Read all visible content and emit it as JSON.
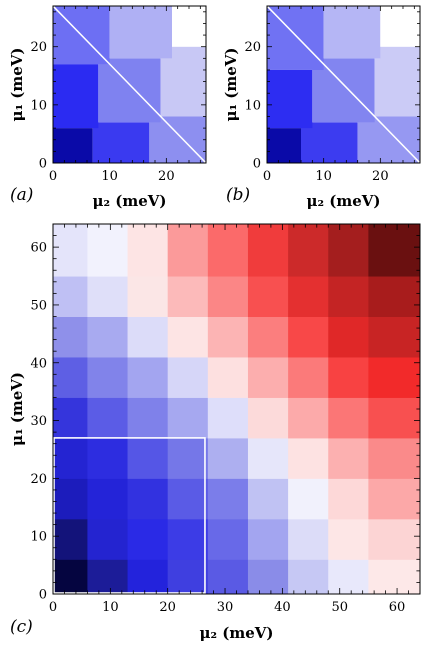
{
  "chart_data": [
    {
      "panel_label": "(a)",
      "type": "heatmap",
      "xlabel": "μ₂ (meV)",
      "ylabel": "μ₁ (meV)",
      "xlim": [
        0,
        27
      ],
      "ylim": [
        0,
        27
      ],
      "xticks": [
        "0",
        "10",
        "20"
      ],
      "yticks": [
        "0",
        "10",
        "20"
      ],
      "colormap": "blue-white",
      "diagonal_line": true,
      "regions": [
        {
          "x0": 0,
          "x1": 7,
          "y0": 0,
          "y1": 6,
          "color": "#0a0aa8"
        },
        {
          "x0": 7,
          "x1": 17,
          "y0": 0,
          "y1": 7,
          "color": "#3a3af0"
        },
        {
          "x0": 17,
          "x1": 27,
          "y0": 0,
          "y1": 8,
          "color": "#8d8ff0"
        },
        {
          "x0": 0,
          "x1": 8,
          "y0": 6,
          "y1": 17,
          "color": "#2b2bf2"
        },
        {
          "x0": 8,
          "x1": 19,
          "y0": 7,
          "y1": 18,
          "color": "#7f82f0"
        },
        {
          "x0": 19,
          "x1": 27,
          "y0": 8,
          "y1": 20,
          "color": "#c8c8f5"
        },
        {
          "x0": 0,
          "x1": 10,
          "y0": 17,
          "y1": 27,
          "color": "#6d6ff3"
        },
        {
          "x0": 10,
          "x1": 21,
          "y0": 18,
          "y1": 27,
          "color": "#afb0f4"
        },
        {
          "x0": 21,
          "x1": 27,
          "y0": 20,
          "y1": 27,
          "color": "#ffffff"
        }
      ]
    },
    {
      "panel_label": "(b)",
      "type": "heatmap",
      "xlabel": "μ₂ (meV)",
      "ylabel": "μ₁ (meV)",
      "xlim": [
        0,
        27
      ],
      "ylim": [
        0,
        27
      ],
      "xticks": [
        "0",
        "10",
        "20"
      ],
      "yticks": [
        "0",
        "10",
        "20"
      ],
      "colormap": "blue-white",
      "diagonal_line": true,
      "regions": [
        {
          "x0": 0,
          "x1": 6,
          "y0": 0,
          "y1": 6,
          "color": "#0a0aa8"
        },
        {
          "x0": 6,
          "x1": 16,
          "y0": 0,
          "y1": 7,
          "color": "#3c3cf0"
        },
        {
          "x0": 16,
          "x1": 27,
          "y0": 0,
          "y1": 8,
          "color": "#9698f2"
        },
        {
          "x0": 0,
          "x1": 8,
          "y0": 6,
          "y1": 16,
          "color": "#2d2df2"
        },
        {
          "x0": 8,
          "x1": 19,
          "y0": 7,
          "y1": 18,
          "color": "#8285f0"
        },
        {
          "x0": 19,
          "x1": 27,
          "y0": 8,
          "y1": 20,
          "color": "#cbcbf6"
        },
        {
          "x0": 0,
          "x1": 10,
          "y0": 16,
          "y1": 27,
          "color": "#7072f3"
        },
        {
          "x0": 10,
          "x1": 20,
          "y0": 18,
          "y1": 27,
          "color": "#b5b6f5"
        },
        {
          "x0": 20,
          "x1": 27,
          "y0": 20,
          "y1": 27,
          "color": "#ffffff"
        }
      ]
    },
    {
      "panel_label": "(c)",
      "type": "heatmap",
      "xlabel": "μ₂ (meV)",
      "ylabel": "μ₁ (meV)",
      "xlim": [
        0,
        64
      ],
      "ylim": [
        0,
        64
      ],
      "xticks": [
        "0",
        "10",
        "20",
        "30",
        "40",
        "50",
        "60"
      ],
      "yticks": [
        "0",
        "10",
        "20",
        "30",
        "40",
        "50",
        "60"
      ],
      "colormap": "blue-white-red",
      "inset_box": {
        "x0": 0,
        "x1": 26.5,
        "y0": 0,
        "y1": 27
      },
      "grid_x": [
        0,
        6,
        13,
        20,
        27,
        34,
        41,
        48,
        55,
        64
      ],
      "grid_y": [
        0,
        6,
        13,
        20,
        27,
        34,
        41,
        48,
        55,
        64
      ],
      "grid_colors": [
        [
          "#050540",
          "#1c1c98",
          "#2323dc",
          "#3f3fe0",
          "#5a5ae4",
          "#8a8ce8",
          "#c6c8f4",
          "#e8e8fb",
          "#fde8e8"
        ],
        [
          "#13137a",
          "#2424d0",
          "#2a2ae6",
          "#3c3ce6",
          "#6869e8",
          "#a3a5f0",
          "#dcdcf8",
          "#fde6e6",
          "#fcd4d4"
        ],
        [
          "#1c1cbc",
          "#2424d8",
          "#3232e0",
          "#5a5be6",
          "#7b7dea",
          "#c0c2f3",
          "#f1f1fc",
          "#fdd8d8",
          "#fca8a8"
        ],
        [
          "#2424d2",
          "#2d2de0",
          "#5556e6",
          "#7577e8",
          "#adaff0",
          "#e6e6fa",
          "#fde2e2",
          "#fcb0b0",
          "#fa8a8a"
        ],
        [
          "#3535dc",
          "#5b5ce6",
          "#7f81ea",
          "#a6a8f0",
          "#dedefa",
          "#fcdada",
          "#fcaaaa",
          "#fb7676",
          "#f85050"
        ],
        [
          "#5e5fe4",
          "#8183ea",
          "#a3a5f0",
          "#d6d6f8",
          "#fde0e0",
          "#fcaeae",
          "#fb7a7a",
          "#f84242",
          "#f22a2a"
        ],
        [
          "#8f90ea",
          "#a8aaf0",
          "#dcdcf9",
          "#fde4e4",
          "#fcb4b4",
          "#fb7e7e",
          "#f84848",
          "#e02828",
          "#c82424"
        ],
        [
          "#bfc0f4",
          "#dfdff9",
          "#fbe6e6",
          "#fcbaba",
          "#fb8686",
          "#f85050",
          "#e43030",
          "#c42424",
          "#a81c1c"
        ],
        [
          "#e4e4fa",
          "#f2f2fd",
          "#fde4e4",
          "#fb9a9a",
          "#fb6a6a",
          "#f03c3c",
          "#cc2a2a",
          "#a41e1e",
          "#6a1010"
        ]
      ]
    }
  ]
}
